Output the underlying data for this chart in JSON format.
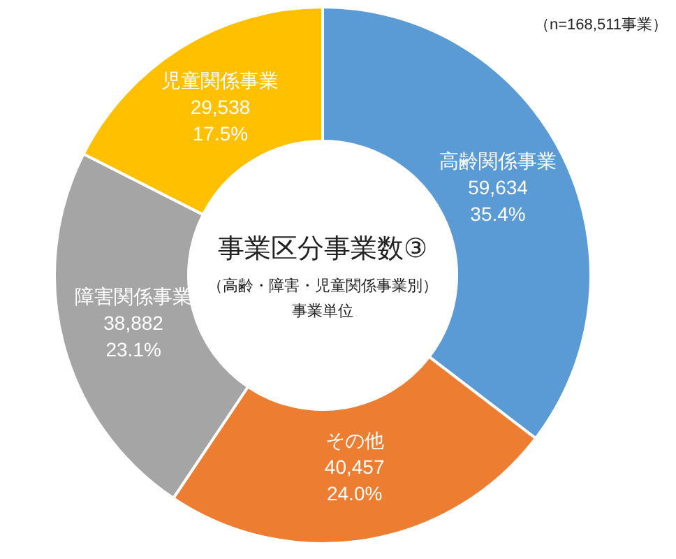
{
  "chart_data": {
    "type": "donut",
    "title": "事業区分事業数③",
    "subtitle": "（高齢・障害・児童関係事業別）",
    "annotations": [
      "事業単位",
      "（n=168,511事業）"
    ],
    "categories": [
      "高齢関係事業",
      "その他",
      "障害関係事業",
      "児童関係事業"
    ],
    "values": [
      59634,
      40457,
      38882,
      29538
    ],
    "colors": [
      "#5b9bd5",
      "#ed7d31",
      "#a5a5a5",
      "#ffc000"
    ],
    "value_labels": [
      "59,634\n35.4%",
      "40,457\n24.0%",
      "38,882\n23.1%",
      "29,538\n17.5%"
    ],
    "legend": false
  }
}
